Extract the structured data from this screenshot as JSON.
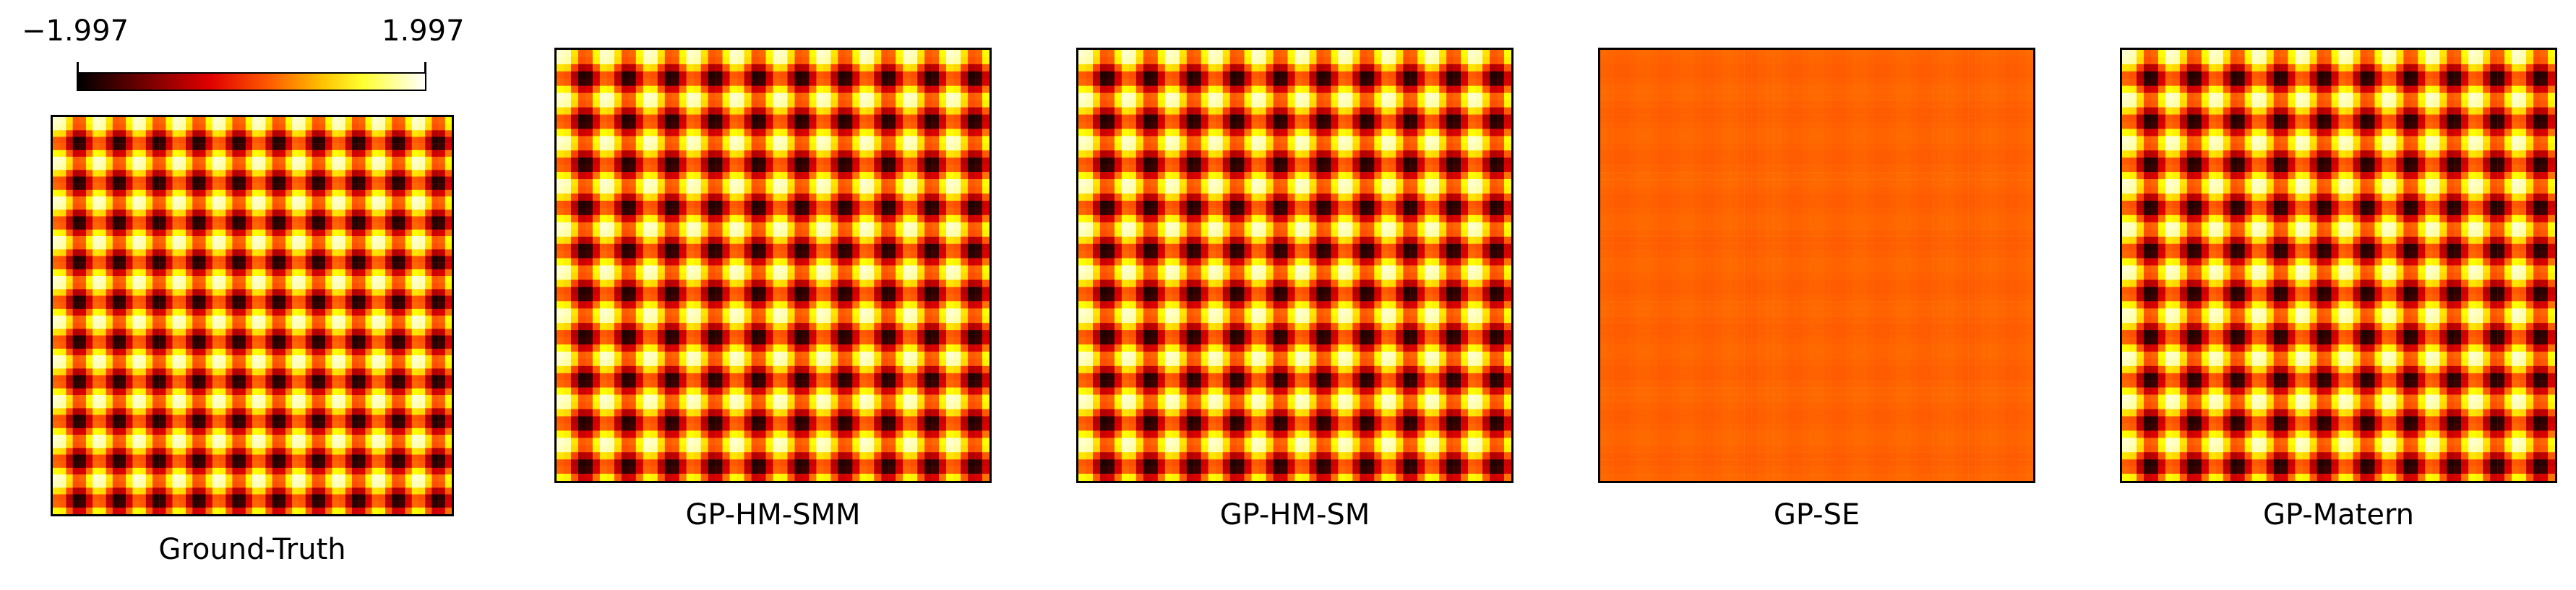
{
  "colorbar": {
    "min_label": "−1.997",
    "max_label": "1.997",
    "vmin": -1.997,
    "vmax": 1.997,
    "colormap": "hot"
  },
  "chart_data": [
    {
      "type": "heatmap",
      "title": "Ground-Truth",
      "pattern": "periodic grid",
      "periods": 10,
      "amplitude": 1.0,
      "uniform_value": null
    },
    {
      "type": "heatmap",
      "title": "GP-HM-SMM",
      "pattern": "periodic grid",
      "periods": 10,
      "amplitude": 1.0,
      "uniform_value": null
    },
    {
      "type": "heatmap",
      "title": "GP-HM-SM",
      "pattern": "periodic grid",
      "periods": 10,
      "amplitude": 1.0,
      "uniform_value": null
    },
    {
      "type": "heatmap",
      "title": "GP-SE",
      "pattern": "near-uniform",
      "periods": 10,
      "amplitude": 0.05,
      "uniform_value": 0.05
    },
    {
      "type": "heatmap",
      "title": "GP-Matern",
      "pattern": "periodic grid",
      "periods": 10,
      "amplitude": 1.0,
      "uniform_value": null
    }
  ]
}
